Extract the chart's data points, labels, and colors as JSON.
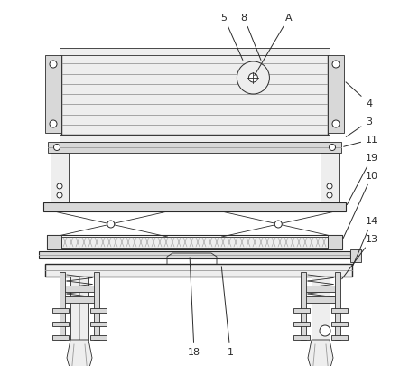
{
  "bg_color": "#ffffff",
  "lc": "#2a2a2a",
  "fill_light": "#eeeeee",
  "fill_mid": "#d8d8d8",
  "fill_dark": "#bbbbbb",
  "mid_gray": "#999999",
  "label_fs": 8,
  "lw_main": 1.0,
  "lw_thin": 0.6,
  "lw_med": 0.8
}
